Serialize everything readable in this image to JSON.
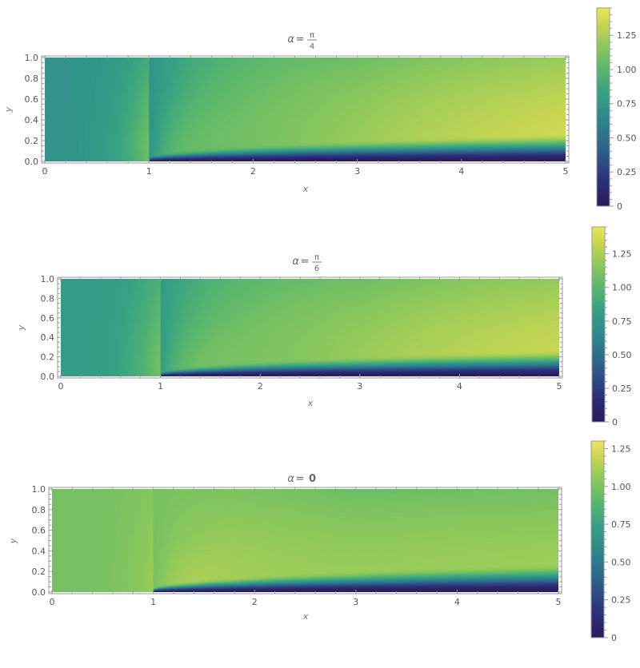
{
  "palette": {
    "stops": [
      [
        0.0,
        "#2c1a5c"
      ],
      [
        0.12,
        "#2a2f7a"
      ],
      [
        0.28,
        "#2d5f8a"
      ],
      [
        0.45,
        "#2d8a8c"
      ],
      [
        0.58,
        "#37a383"
      ],
      [
        0.7,
        "#5cb86b"
      ],
      [
        0.82,
        "#92ca5a"
      ],
      [
        0.92,
        "#c8d653"
      ],
      [
        1.0,
        "#ece55a"
      ]
    ]
  },
  "chart_data": [
    {
      "type": "heatmap",
      "title": {
        "alpha": "α",
        "eq": "=",
        "num": "π",
        "den": "4"
      },
      "xlabel": "x",
      "ylabel": "y",
      "xlim": [
        0,
        5
      ],
      "ylim": [
        0,
        1
      ],
      "xticks": [
        "0",
        "1",
        "2",
        "3",
        "4",
        "5"
      ],
      "yticks": [
        "0.0",
        "0.2",
        "0.4",
        "0.6",
        "0.8",
        "1.0"
      ],
      "colorbar": {
        "min": 0,
        "max": 1.45,
        "ticks": [
          "0",
          "0.25",
          "0.50",
          "0.75",
          "1.00",
          "1.25"
        ],
        "tick_values": [
          0,
          0.25,
          0.5,
          0.75,
          1.0,
          1.25
        ]
      },
      "field": {
        "inlet": 0.72,
        "fan_peak": 1.3,
        "fan_center_y": 0.55,
        "plate_start": 1.0,
        "far": 1.45
      }
    },
    {
      "type": "heatmap",
      "title": {
        "alpha": "α",
        "eq": "=",
        "num": "π",
        "den": "6"
      },
      "xlabel": "x",
      "ylabel": "y",
      "xlim": [
        0,
        5
      ],
      "ylim": [
        0,
        1
      ],
      "xticks": [
        "0",
        "1",
        "2",
        "3",
        "4",
        "5"
      ],
      "yticks": [
        "0.0",
        "0.2",
        "0.4",
        "0.6",
        "0.8",
        "1.0"
      ],
      "colorbar": {
        "min": 0,
        "max": 1.45,
        "ticks": [
          "0",
          "0.25",
          "0.50",
          "0.75",
          "1.00",
          "1.25"
        ],
        "tick_values": [
          0,
          0.25,
          0.5,
          0.75,
          1.0,
          1.25
        ]
      },
      "field": {
        "inlet": 0.78,
        "fan_peak": 1.32,
        "fan_center_y": 0.5,
        "plate_start": 1.0,
        "far": 1.42
      }
    },
    {
      "type": "heatmap",
      "title": {
        "alpha": "α",
        "eq": "=",
        "num": "",
        "den": "",
        "value": "0"
      },
      "xlabel": "x",
      "ylabel": "y",
      "xlim": [
        0,
        5
      ],
      "ylim": [
        0,
        1
      ],
      "xticks": [
        "0",
        "1",
        "2",
        "3",
        "4",
        "5"
      ],
      "yticks": [
        "0.0",
        "0.2",
        "0.4",
        "0.6",
        "0.8",
        "1.0"
      ],
      "colorbar": {
        "min": 0,
        "max": 1.3,
        "ticks": [
          "0",
          "0.25",
          "0.50",
          "0.75",
          "1.00",
          "1.25"
        ],
        "tick_values": [
          0,
          0.25,
          0.5,
          0.75,
          1.0,
          1.25
        ]
      },
      "field": {
        "inlet": 0.98,
        "fan_peak": 1.28,
        "fan_center_y": 0.25,
        "plate_start": 1.0,
        "far": 1.12
      }
    }
  ]
}
